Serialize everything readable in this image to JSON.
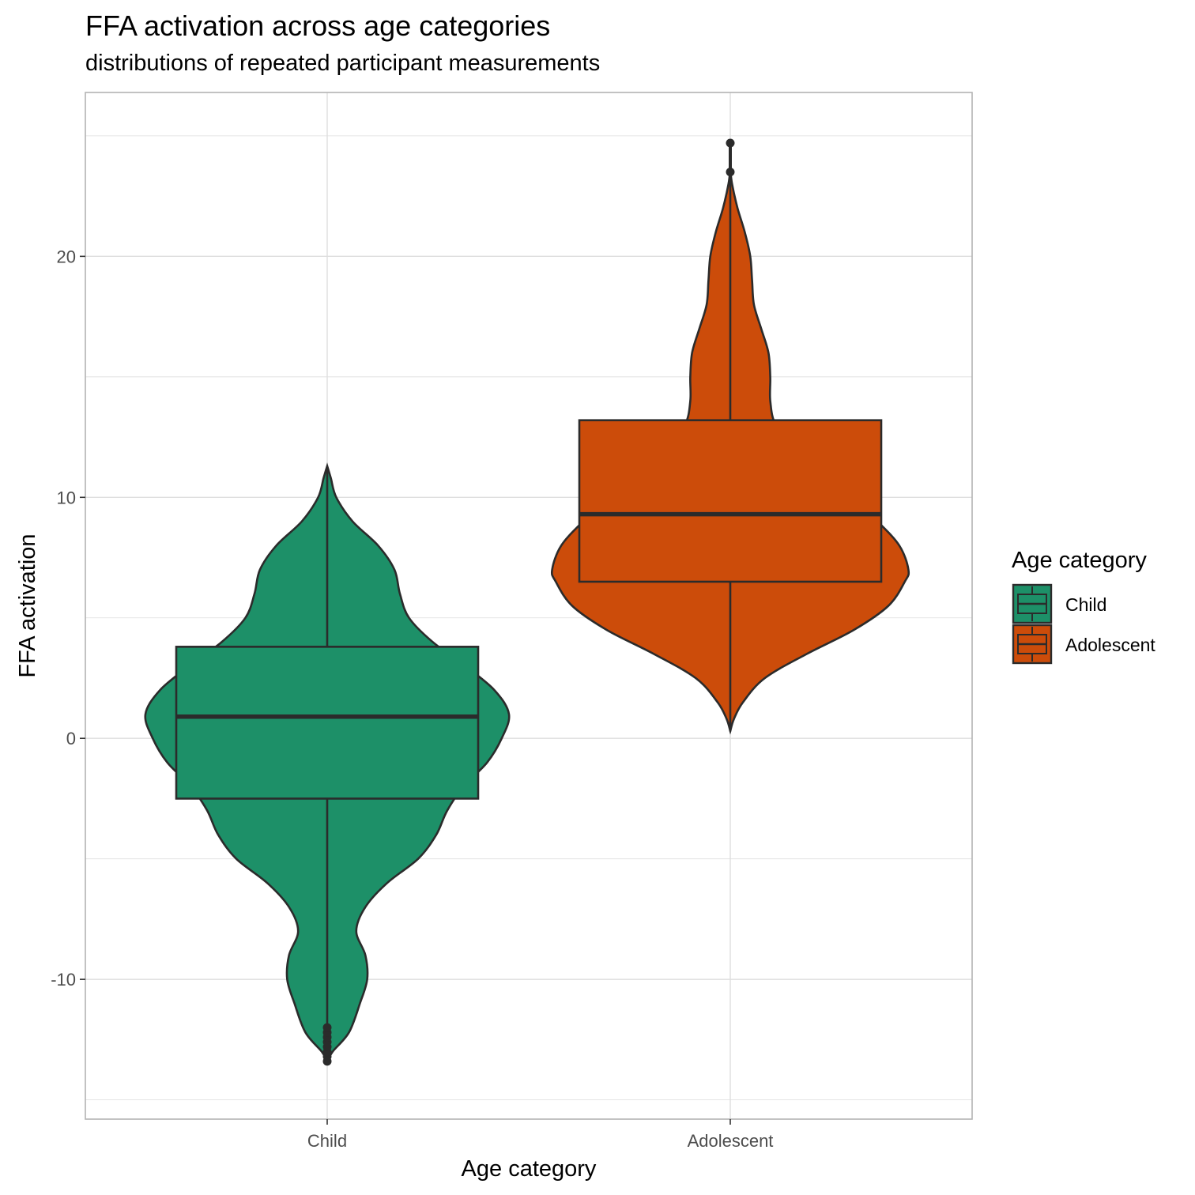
{
  "chart_data": {
    "type": "violin",
    "title": "FFA activation across age categories",
    "subtitle": "distributions of repeated participant measurements",
    "xlabel": "Age category",
    "ylabel": "FFA activation",
    "categories": [
      "Child",
      "Adolescent"
    ],
    "ylim": [
      -15.8,
      26.8
    ],
    "y_ticks": [
      -10,
      0,
      10,
      20
    ],
    "y_tick_labels": [
      "-10",
      "0",
      "10",
      "20"
    ],
    "grid": true,
    "legend": {
      "title": "Age category",
      "position": "right",
      "entries": [
        "Child",
        "Adolescent"
      ]
    },
    "colors": {
      "Child": "#1d9068",
      "Adolescent": "#cc4c0a",
      "outline": "#2b2b2b",
      "grid": "#dedede",
      "panel_border": "#b3b3b3"
    },
    "series": [
      {
        "name": "Child",
        "color": "#1d9068",
        "box": {
          "lower_whisker": -12.2,
          "q1": -2.5,
          "median": 0.9,
          "q3": 3.8,
          "upper_whisker": 11.2
        },
        "outliers": [
          -12.0,
          -12.2,
          -12.4,
          -12.6,
          -12.8,
          -13.0,
          -13.2,
          -13.4
        ],
        "violin_extent": [
          -13.4,
          11.3
        ],
        "density": [
          [
            -13.4,
            0.0
          ],
          [
            -13.0,
            0.03
          ],
          [
            -12.2,
            0.12
          ],
          [
            -11.0,
            0.18
          ],
          [
            -10.0,
            0.22
          ],
          [
            -9.0,
            0.21
          ],
          [
            -8.0,
            0.16
          ],
          [
            -7.0,
            0.21
          ],
          [
            -6.0,
            0.33
          ],
          [
            -5.0,
            0.5
          ],
          [
            -4.0,
            0.6
          ],
          [
            -3.0,
            0.66
          ],
          [
            -2.0,
            0.75
          ],
          [
            -1.0,
            0.88
          ],
          [
            0.0,
            0.96
          ],
          [
            1.0,
            1.0
          ],
          [
            2.0,
            0.92
          ],
          [
            3.0,
            0.76
          ],
          [
            4.0,
            0.58
          ],
          [
            5.0,
            0.45
          ],
          [
            6.0,
            0.4
          ],
          [
            7.0,
            0.37
          ],
          [
            8.0,
            0.28
          ],
          [
            9.0,
            0.14
          ],
          [
            10.0,
            0.05
          ],
          [
            10.8,
            0.02
          ],
          [
            11.3,
            0.0
          ]
        ]
      },
      {
        "name": "Adolescent",
        "color": "#cc4c0a",
        "box": {
          "lower_whisker": 0.3,
          "q1": 6.5,
          "median": 9.3,
          "q3": 13.2,
          "upper_whisker": 23.5
        },
        "outliers": [
          23.5,
          24.7
        ],
        "violin_extent": [
          0.3,
          23.6
        ],
        "density": [
          [
            0.3,
            0.0
          ],
          [
            0.8,
            0.02
          ],
          [
            1.5,
            0.07
          ],
          [
            2.5,
            0.19
          ],
          [
            3.5,
            0.42
          ],
          [
            4.5,
            0.68
          ],
          [
            5.5,
            0.87
          ],
          [
            6.5,
            0.96
          ],
          [
            7.0,
            0.98
          ],
          [
            8.0,
            0.93
          ],
          [
            9.0,
            0.81
          ],
          [
            10.0,
            0.67
          ],
          [
            11.0,
            0.5
          ],
          [
            12.0,
            0.36
          ],
          [
            13.0,
            0.25
          ],
          [
            14.0,
            0.22
          ],
          [
            15.0,
            0.22
          ],
          [
            16.0,
            0.21
          ],
          [
            17.0,
            0.17
          ],
          [
            18.0,
            0.13
          ],
          [
            19.0,
            0.12
          ],
          [
            20.0,
            0.11
          ],
          [
            21.0,
            0.08
          ],
          [
            22.0,
            0.04
          ],
          [
            23.0,
            0.01
          ],
          [
            23.6,
            0.0
          ]
        ]
      }
    ]
  }
}
